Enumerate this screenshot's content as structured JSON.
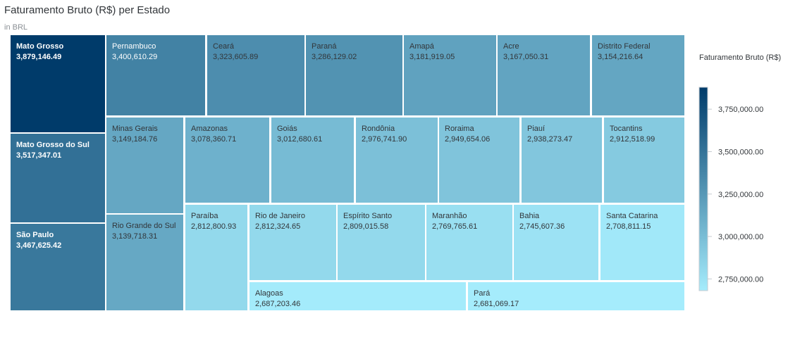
{
  "title": "Faturamento Bruto (R$) per Estado",
  "subtitle": "in BRL",
  "legend": {
    "title": "Faturamento Bruto (R$)",
    "ticks": [
      "3,750,000.00",
      "3,500,000.00",
      "3,250,000.00",
      "3,000,000.00",
      "2,750,000.00"
    ],
    "tick_values": [
      3750000,
      3500000,
      3250000,
      3000000,
      2750000
    ]
  },
  "colors": {
    "max": "#003b6a",
    "min": "#a5ecfc",
    "text_dark": "#32363a",
    "text_light": "#ffffff"
  },
  "chart_data": {
    "type": "treemap",
    "title": "Faturamento Bruto (R$) per Estado",
    "subtitle": "in BRL",
    "color_scale": {
      "min": 2681069.17,
      "max": 3879146.49
    },
    "items": [
      {
        "name": "Mato Grosso",
        "value": 3879146.49,
        "label": "3,879,146.49"
      },
      {
        "name": "Mato Grosso do Sul",
        "value": 3517347.01,
        "label": "3,517,347.01"
      },
      {
        "name": "São Paulo",
        "value": 3467625.42,
        "label": "3,467,625.42"
      },
      {
        "name": "Pernambuco",
        "value": 3400610.29,
        "label": "3,400,610.29"
      },
      {
        "name": "Ceará",
        "value": 3323605.89,
        "label": "3,323,605.89"
      },
      {
        "name": "Paraná",
        "value": 3286129.02,
        "label": "3,286,129.02"
      },
      {
        "name": "Amapá",
        "value": 3181919.05,
        "label": "3,181,919.05"
      },
      {
        "name": "Acre",
        "value": 3167050.31,
        "label": "3,167,050.31"
      },
      {
        "name": "Distrito Federal",
        "value": 3154216.64,
        "label": "3,154,216.64"
      },
      {
        "name": "Minas Gerais",
        "value": 3149184.76,
        "label": "3,149,184.76"
      },
      {
        "name": "Rio Grande do Sul",
        "value": 3139718.31,
        "label": "3,139,718.31"
      },
      {
        "name": "Amazonas",
        "value": 3078360.71,
        "label": "3,078,360.71"
      },
      {
        "name": "Goiás",
        "value": 3012680.61,
        "label": "3,012,680.61"
      },
      {
        "name": "Rondônia",
        "value": 2976741.9,
        "label": "2,976,741.90"
      },
      {
        "name": "Roraima",
        "value": 2949654.06,
        "label": "2,949,654.06"
      },
      {
        "name": "Piauí",
        "value": 2938273.47,
        "label": "2,938,273.47"
      },
      {
        "name": "Tocantins",
        "value": 2912518.99,
        "label": "2,912,518.99"
      },
      {
        "name": "Paraíba",
        "value": 2812800.93,
        "label": "2,812,800.93"
      },
      {
        "name": "Rio de Janeiro",
        "value": 2812324.65,
        "label": "2,812,324.65"
      },
      {
        "name": "Espírito Santo",
        "value": 2809015.58,
        "label": "2,809,015.58"
      },
      {
        "name": "Maranhão",
        "value": 2769765.61,
        "label": "2,769,765.61"
      },
      {
        "name": "Bahia",
        "value": 2745607.36,
        "label": "2,745,607.36"
      },
      {
        "name": "Santa Catarina",
        "value": 2708811.15,
        "label": "2,708,811.15"
      },
      {
        "name": "Alagoas",
        "value": 2687203.46,
        "label": "2,687,203.46"
      },
      {
        "name": "Pará",
        "value": 2681069.17,
        "label": "2,681,069.17"
      }
    ]
  }
}
